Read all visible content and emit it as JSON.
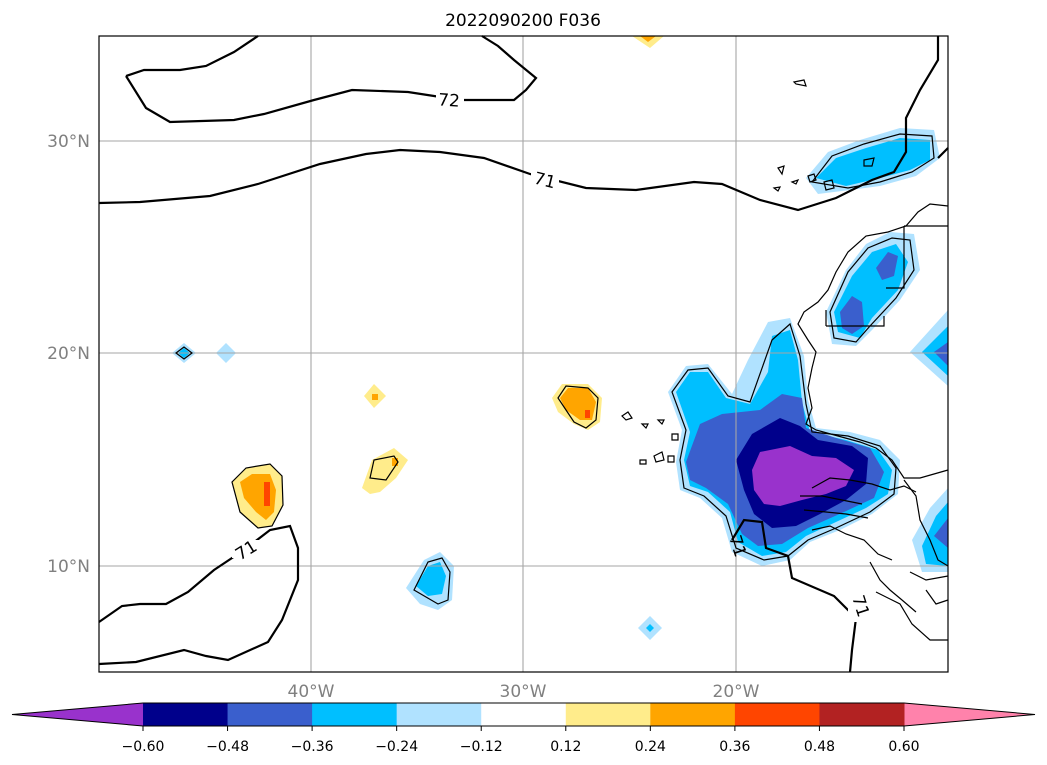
{
  "title": "2022090200 F036",
  "map": {
    "lat_ticks": [
      "30°N",
      "20°N",
      "10°N"
    ],
    "lon_ticks": [
      "40°W",
      "30°W",
      "20°W"
    ],
    "grid": true,
    "contour_lines": [
      {
        "level": 72,
        "label": "72"
      },
      {
        "level": 71,
        "label": "71"
      }
    ]
  },
  "colorbar": {
    "levels": [
      "−0.60",
      "−0.48",
      "−0.36",
      "−0.24",
      "−0.12",
      "0.12",
      "0.24",
      "0.36",
      "0.48",
      "0.60"
    ],
    "colors": [
      "#9932cc",
      "#00008b",
      "#3a5fcd",
      "#00bfff",
      "#b0e2ff",
      "#ffffff",
      "#ffec8b",
      "#ffa500",
      "#ff4500",
      "#b22222",
      "#ff82ab"
    ],
    "extend": "both"
  }
}
